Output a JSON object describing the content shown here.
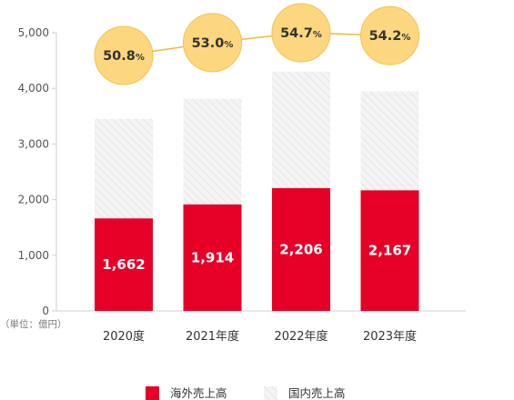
{
  "chart_data": {
    "type": "bar",
    "stacked": true,
    "categories": [
      "2020度",
      "2021年度",
      "2022年度",
      "2023年度"
    ],
    "series": [
      {
        "name": "海外売上高",
        "values": [
          1662,
          1914,
          2206,
          2167
        ],
        "color": "#e60027"
      },
      {
        "name": "国内売上高",
        "values": [
          1790,
          1897,
          2097,
          1778
        ],
        "color": "#f2f2f2"
      }
    ],
    "bar_labels": [
      "1,662",
      "1,914",
      "2,206",
      "2,167"
    ],
    "ratio": {
      "values": [
        50.8,
        53.0,
        54.7,
        54.2
      ],
      "labels": [
        "50.8",
        "53.0",
        "54.7",
        "54.2"
      ],
      "unit": "%",
      "bubble_color": "#fcd77f",
      "line_color": "#f4b73a"
    },
    "yticks": [
      "0",
      "1,000",
      "2,000",
      "3,000",
      "4,000",
      "5,000"
    ],
    "ytick_values": [
      0,
      1000,
      2000,
      3000,
      4000,
      5000
    ],
    "ylim": [
      0,
      5000
    ],
    "unit_label": "（単位：億円）",
    "grid": false,
    "legend_position": "bottom"
  }
}
